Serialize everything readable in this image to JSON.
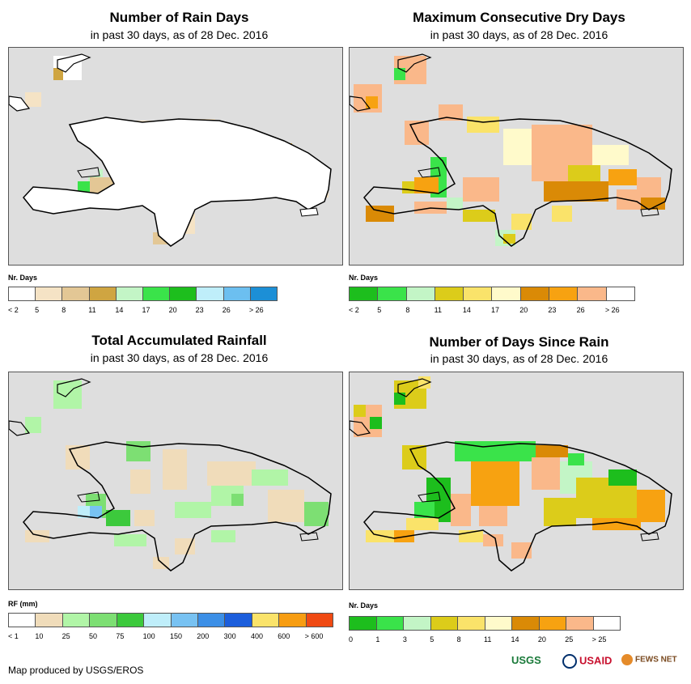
{
  "panels": [
    {
      "title": "Number of Rain Days",
      "subtitle": "in past 30 days, as of 28 Dec. 2016",
      "legend_title": "Nr. Days",
      "legend_ticks": [
        "< 2",
        "5",
        "8",
        "11",
        "14",
        "17",
        "20",
        "23",
        "26",
        "> 26"
      ],
      "legend_colors": [
        "#ffffff",
        "#f5e3c5",
        "#e3c795",
        "#cfa541",
        "#c3f5c6",
        "#3ae34a",
        "#1dbe1d",
        "#bfeefa",
        "#6cbff0",
        "#1c8fd6"
      ]
    },
    {
      "title": "Maximum Consecutive Dry Days",
      "subtitle": "in past 30 days, as of 28 Dec. 2016",
      "legend_title": "Nr. Days",
      "legend_ticks": [
        "< 2",
        "5",
        "8",
        "11",
        "14",
        "17",
        "20",
        "23",
        "26",
        "> 26"
      ],
      "legend_colors": [
        "#1dbe1d",
        "#3ae34a",
        "#c3f5c6",
        "#dccc1a",
        "#fae36a",
        "#fffacb",
        "#da8a06",
        "#f7a211",
        "#fab88a",
        "#ffffff"
      ]
    },
    {
      "title": "Total Accumulated Rainfall",
      "subtitle": "in past 30 days, as of 28 Dec. 2016",
      "legend_title": "RF (mm)",
      "legend_ticks": [
        "< 1",
        "10",
        "25",
        "50",
        "75",
        "100",
        "150",
        "200",
        "300",
        "400",
        "600",
        "> 600"
      ],
      "legend_colors": [
        "#ffffff",
        "#f0dcba",
        "#b1f5a7",
        "#7ddf73",
        "#3cc93c",
        "#bfeefa",
        "#78c2f2",
        "#3c8fe6",
        "#1c5edc",
        "#fae36a",
        "#f79d12",
        "#f04a13"
      ]
    },
    {
      "title": "Number of Days Since Rain",
      "subtitle": "in past 30 days, as of 28 Dec. 2016",
      "legend_title": "Nr. Days",
      "legend_ticks": [
        "0",
        "1",
        "3",
        "5",
        "8",
        "11",
        "14",
        "20",
        "25",
        "> 25"
      ],
      "legend_colors": [
        "#1dbe1d",
        "#3ae34a",
        "#c3f5c6",
        "#dccc1a",
        "#fae36a",
        "#fffacb",
        "#da8a06",
        "#f7a211",
        "#fab88a",
        "#ffffff"
      ]
    }
  ],
  "footer": "Map produced by USGS/EROS",
  "logos": {
    "usgs": "USGS",
    "usaid": "USAID",
    "fews": "FEWS NET"
  },
  "colors": {
    "ocean": "#dedede",
    "land": "#ffffff",
    "coast": "#000000"
  }
}
